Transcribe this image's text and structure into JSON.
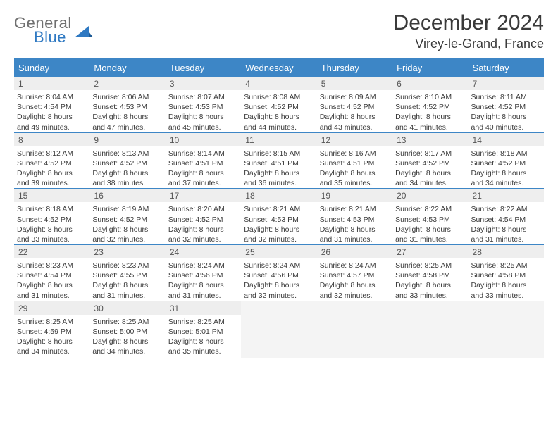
{
  "logo": {
    "text1": "General",
    "text2": "Blue",
    "text1_color": "#6f6f6f",
    "text2_color": "#2f79c2",
    "icon_color": "#2f79c2"
  },
  "title": "December 2024",
  "location": "Virey-le-Grand, France",
  "colors": {
    "header_bg": "#3d86c6",
    "header_text": "#ffffff",
    "daynum_bg": "#eeeeee",
    "row_border": "#3d86c6",
    "text": "#3a3a3a",
    "empty_bg": "#f4f4f4"
  },
  "typography": {
    "title_fontsize": 30,
    "location_fontsize": 18,
    "dayheader_fontsize": 13,
    "daynum_fontsize": 12,
    "info_fontsize": 10.5
  },
  "day_headers": [
    "Sunday",
    "Monday",
    "Tuesday",
    "Wednesday",
    "Thursday",
    "Friday",
    "Saturday"
  ],
  "weeks": [
    [
      {
        "n": "1",
        "sr": "Sunrise: 8:04 AM",
        "ss": "Sunset: 4:54 PM",
        "d1": "Daylight: 8 hours",
        "d2": "and 49 minutes."
      },
      {
        "n": "2",
        "sr": "Sunrise: 8:06 AM",
        "ss": "Sunset: 4:53 PM",
        "d1": "Daylight: 8 hours",
        "d2": "and 47 minutes."
      },
      {
        "n": "3",
        "sr": "Sunrise: 8:07 AM",
        "ss": "Sunset: 4:53 PM",
        "d1": "Daylight: 8 hours",
        "d2": "and 45 minutes."
      },
      {
        "n": "4",
        "sr": "Sunrise: 8:08 AM",
        "ss": "Sunset: 4:52 PM",
        "d1": "Daylight: 8 hours",
        "d2": "and 44 minutes."
      },
      {
        "n": "5",
        "sr": "Sunrise: 8:09 AM",
        "ss": "Sunset: 4:52 PM",
        "d1": "Daylight: 8 hours",
        "d2": "and 43 minutes."
      },
      {
        "n": "6",
        "sr": "Sunrise: 8:10 AM",
        "ss": "Sunset: 4:52 PM",
        "d1": "Daylight: 8 hours",
        "d2": "and 41 minutes."
      },
      {
        "n": "7",
        "sr": "Sunrise: 8:11 AM",
        "ss": "Sunset: 4:52 PM",
        "d1": "Daylight: 8 hours",
        "d2": "and 40 minutes."
      }
    ],
    [
      {
        "n": "8",
        "sr": "Sunrise: 8:12 AM",
        "ss": "Sunset: 4:52 PM",
        "d1": "Daylight: 8 hours",
        "d2": "and 39 minutes."
      },
      {
        "n": "9",
        "sr": "Sunrise: 8:13 AM",
        "ss": "Sunset: 4:52 PM",
        "d1": "Daylight: 8 hours",
        "d2": "and 38 minutes."
      },
      {
        "n": "10",
        "sr": "Sunrise: 8:14 AM",
        "ss": "Sunset: 4:51 PM",
        "d1": "Daylight: 8 hours",
        "d2": "and 37 minutes."
      },
      {
        "n": "11",
        "sr": "Sunrise: 8:15 AM",
        "ss": "Sunset: 4:51 PM",
        "d1": "Daylight: 8 hours",
        "d2": "and 36 minutes."
      },
      {
        "n": "12",
        "sr": "Sunrise: 8:16 AM",
        "ss": "Sunset: 4:51 PM",
        "d1": "Daylight: 8 hours",
        "d2": "and 35 minutes."
      },
      {
        "n": "13",
        "sr": "Sunrise: 8:17 AM",
        "ss": "Sunset: 4:52 PM",
        "d1": "Daylight: 8 hours",
        "d2": "and 34 minutes."
      },
      {
        "n": "14",
        "sr": "Sunrise: 8:18 AM",
        "ss": "Sunset: 4:52 PM",
        "d1": "Daylight: 8 hours",
        "d2": "and 34 minutes."
      }
    ],
    [
      {
        "n": "15",
        "sr": "Sunrise: 8:18 AM",
        "ss": "Sunset: 4:52 PM",
        "d1": "Daylight: 8 hours",
        "d2": "and 33 minutes."
      },
      {
        "n": "16",
        "sr": "Sunrise: 8:19 AM",
        "ss": "Sunset: 4:52 PM",
        "d1": "Daylight: 8 hours",
        "d2": "and 32 minutes."
      },
      {
        "n": "17",
        "sr": "Sunrise: 8:20 AM",
        "ss": "Sunset: 4:52 PM",
        "d1": "Daylight: 8 hours",
        "d2": "and 32 minutes."
      },
      {
        "n": "18",
        "sr": "Sunrise: 8:21 AM",
        "ss": "Sunset: 4:53 PM",
        "d1": "Daylight: 8 hours",
        "d2": "and 32 minutes."
      },
      {
        "n": "19",
        "sr": "Sunrise: 8:21 AM",
        "ss": "Sunset: 4:53 PM",
        "d1": "Daylight: 8 hours",
        "d2": "and 31 minutes."
      },
      {
        "n": "20",
        "sr": "Sunrise: 8:22 AM",
        "ss": "Sunset: 4:53 PM",
        "d1": "Daylight: 8 hours",
        "d2": "and 31 minutes."
      },
      {
        "n": "21",
        "sr": "Sunrise: 8:22 AM",
        "ss": "Sunset: 4:54 PM",
        "d1": "Daylight: 8 hours",
        "d2": "and 31 minutes."
      }
    ],
    [
      {
        "n": "22",
        "sr": "Sunrise: 8:23 AM",
        "ss": "Sunset: 4:54 PM",
        "d1": "Daylight: 8 hours",
        "d2": "and 31 minutes."
      },
      {
        "n": "23",
        "sr": "Sunrise: 8:23 AM",
        "ss": "Sunset: 4:55 PM",
        "d1": "Daylight: 8 hours",
        "d2": "and 31 minutes."
      },
      {
        "n": "24",
        "sr": "Sunrise: 8:24 AM",
        "ss": "Sunset: 4:56 PM",
        "d1": "Daylight: 8 hours",
        "d2": "and 31 minutes."
      },
      {
        "n": "25",
        "sr": "Sunrise: 8:24 AM",
        "ss": "Sunset: 4:56 PM",
        "d1": "Daylight: 8 hours",
        "d2": "and 32 minutes."
      },
      {
        "n": "26",
        "sr": "Sunrise: 8:24 AM",
        "ss": "Sunset: 4:57 PM",
        "d1": "Daylight: 8 hours",
        "d2": "and 32 minutes."
      },
      {
        "n": "27",
        "sr": "Sunrise: 8:25 AM",
        "ss": "Sunset: 4:58 PM",
        "d1": "Daylight: 8 hours",
        "d2": "and 33 minutes."
      },
      {
        "n": "28",
        "sr": "Sunrise: 8:25 AM",
        "ss": "Sunset: 4:58 PM",
        "d1": "Daylight: 8 hours",
        "d2": "and 33 minutes."
      }
    ],
    [
      {
        "n": "29",
        "sr": "Sunrise: 8:25 AM",
        "ss": "Sunset: 4:59 PM",
        "d1": "Daylight: 8 hours",
        "d2": "and 34 minutes."
      },
      {
        "n": "30",
        "sr": "Sunrise: 8:25 AM",
        "ss": "Sunset: 5:00 PM",
        "d1": "Daylight: 8 hours",
        "d2": "and 34 minutes."
      },
      {
        "n": "31",
        "sr": "Sunrise: 8:25 AM",
        "ss": "Sunset: 5:01 PM",
        "d1": "Daylight: 8 hours",
        "d2": "and 35 minutes."
      },
      null,
      null,
      null,
      null
    ]
  ]
}
